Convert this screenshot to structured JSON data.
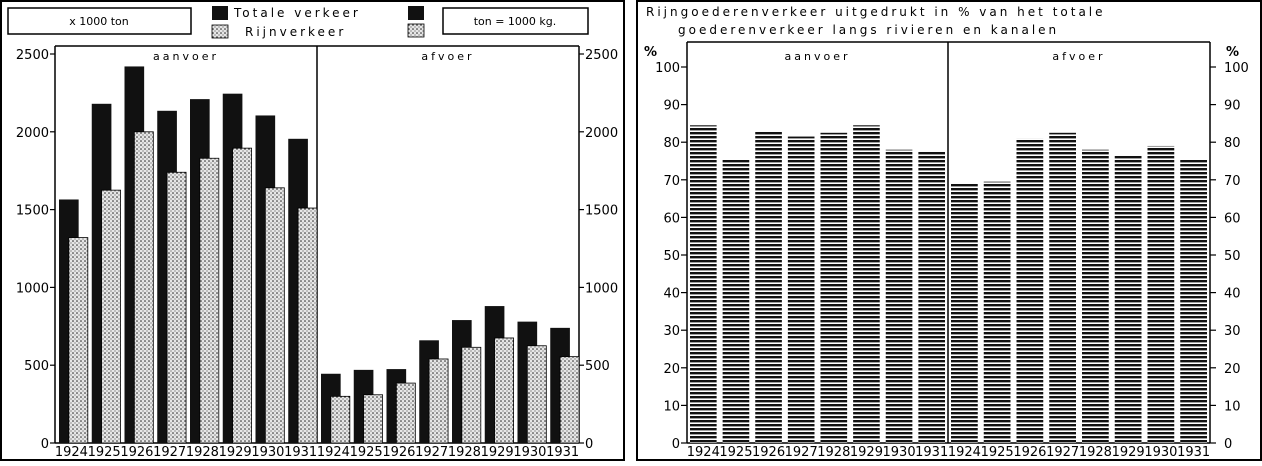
{
  "legend": {
    "unit_left": "x 1000 ton",
    "total_label": "Totale verkeer",
    "rhine_label": "Rijnverkeer",
    "unit_right": "ton = 1000 kg."
  },
  "colors": {
    "total": "#111111",
    "rhine_fill": "#e6e6e6",
    "percent_fill": "#111111"
  },
  "chart_data": [
    {
      "type": "bar",
      "years": [
        "1924",
        "1925",
        "1926",
        "1927",
        "1928",
        "1929",
        "1930",
        "1931"
      ],
      "ylim": [
        0,
        2500
      ],
      "yticks": [
        "0",
        "500",
        "1000",
        "1500",
        "2000",
        "2500"
      ],
      "panels": [
        {
          "title": "aanvoer",
          "series": [
            {
              "name": "Totale verkeer",
              "values": [
                1565,
                2180,
                2420,
                2135,
                2210,
                2245,
                2105,
                1955
              ]
            },
            {
              "name": "Rijnverkeer",
              "values": [
                1320,
                1625,
                2000,
                1740,
                1830,
                1895,
                1640,
                1510
              ]
            }
          ]
        },
        {
          "title": "afvoer",
          "series": [
            {
              "name": "Totale verkeer",
              "values": [
                445,
                470,
                475,
                660,
                790,
                880,
                780,
                740
              ]
            },
            {
              "name": "Rijnverkeer",
              "values": [
                300,
                310,
                385,
                540,
                615,
                675,
                625,
                555
              ]
            }
          ]
        }
      ]
    },
    {
      "type": "bar",
      "title_line1": "Rijngoederenverkeer uitgedrukt in % van het totale",
      "title_line2": "goederenverkeer langs rivieren en kanalen",
      "unit_left": "%",
      "unit_right": "%",
      "years": [
        "1924",
        "1925",
        "1926",
        "1927",
        "1928",
        "1929",
        "1930",
        "1931"
      ],
      "ylim": [
        0,
        100
      ],
      "yticks": [
        "0",
        "10",
        "20",
        "30",
        "40",
        "50",
        "60",
        "70",
        "80",
        "90",
        "100"
      ],
      "panels": [
        {
          "title": "aanvoer",
          "values": [
            84.5,
            75.5,
            83,
            81.5,
            82.5,
            84.5,
            78,
            77.5
          ]
        },
        {
          "title": "afvoer",
          "values": [
            69,
            69.5,
            81,
            82.5,
            78,
            76.5,
            79,
            75.5
          ]
        }
      ]
    }
  ]
}
